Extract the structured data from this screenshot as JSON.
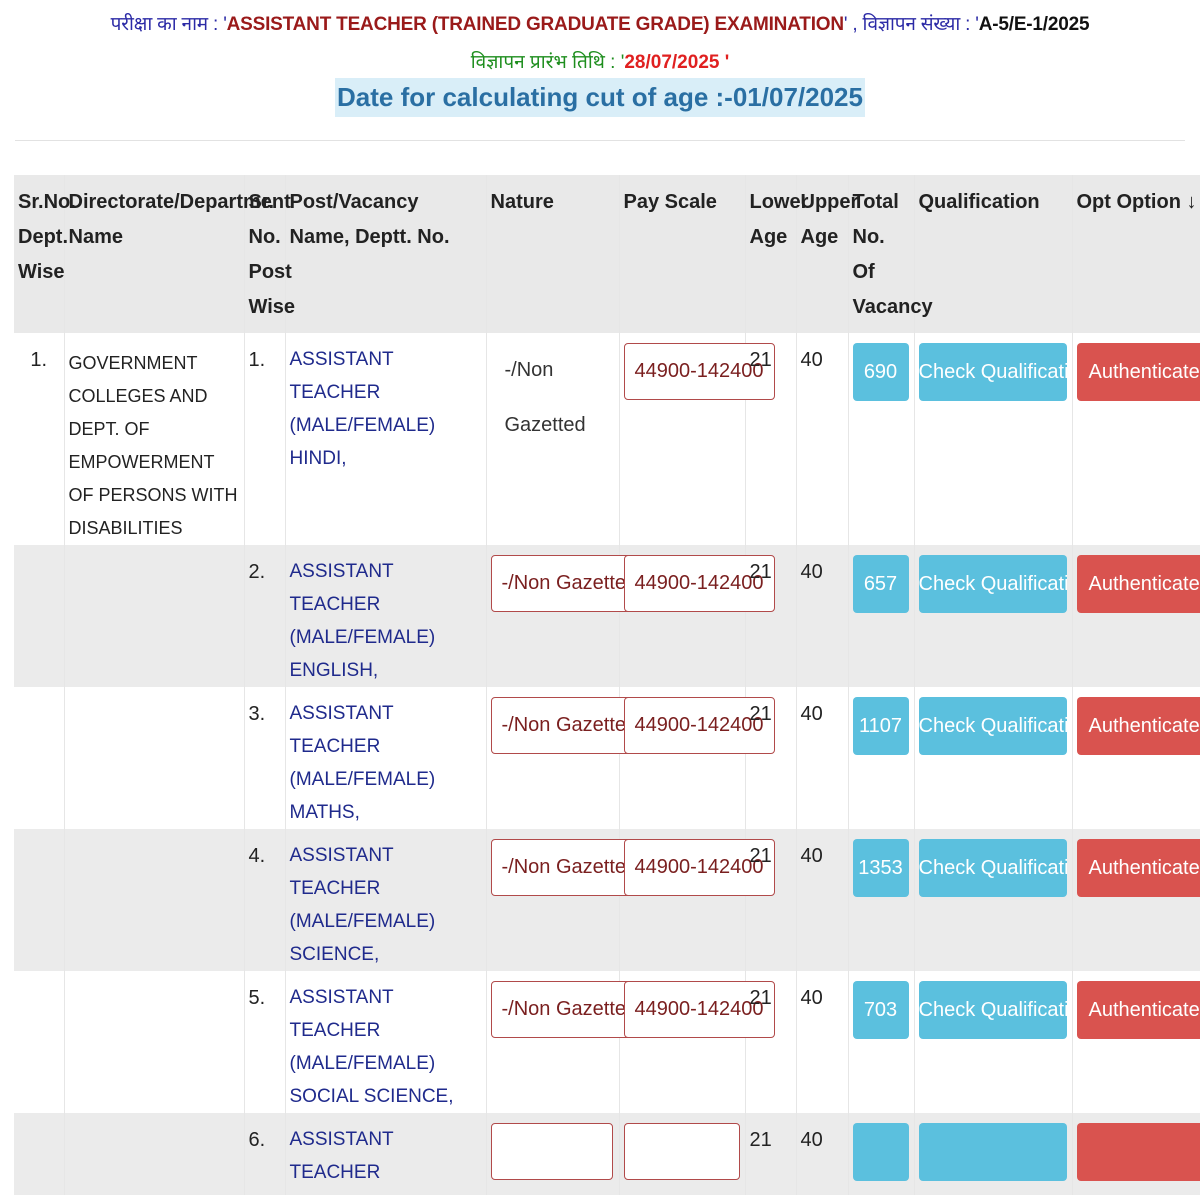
{
  "header": {
    "exam_label": "परीक्षा का नाम : '",
    "exam_name": "ASSISTANT TEACHER (TRAINED GRADUATE GRADE) EXAMINATION",
    "exam_sep": "' , विज्ञापन संख्या : '",
    "advt_no": "A-5/E-1/2025",
    "advt_date_label": "विज्ञापन प्रारंभ तिथि : '",
    "advt_date": "28/07/2025",
    "advt_date_close": "'",
    "cutoff_text": "Date for calculating cut of age :-01/07/2025"
  },
  "table": {
    "columns": [
      "Sr.No. Dept. Wise",
      "Directorate/Department Name",
      "Sr. No. Post Wise",
      "Post/Vacancy Name, Deptt. No.",
      "Nature",
      "Pay Scale",
      "Lower Age",
      "Upper Age",
      "Total No. Of Vacancy",
      "Qualification",
      "Opt Option ↓"
    ],
    "rows": [
      {
        "dept_sr": "1.",
        "dept": "GOVERNMENT COLLEGES AND DEPT. OF EMPOWERMENT OF PERSONS WITH DISABILITIES",
        "post_sr": "1.",
        "post": "ASSISTANT TEACHER (MALE/FEMALE) HINDI,",
        "nature": "-/Non Gazetted",
        "pay": "44900-142400",
        "lower": "21",
        "upper": "40",
        "vacancy": "690",
        "qual_btn": "Check Qualification",
        "opt_btn": "Authenticate w"
      },
      {
        "dept_sr": "",
        "dept": "",
        "post_sr": "2.",
        "post": "ASSISTANT TEACHER (MALE/FEMALE) ENGLISH,",
        "nature": "-/Non Gazetted",
        "pay": "44900-142400",
        "lower": "21",
        "upper": "40",
        "vacancy": "657",
        "qual_btn": "Check Qualification",
        "opt_btn": "Authenticate w"
      },
      {
        "dept_sr": "",
        "dept": "",
        "post_sr": "3.",
        "post": "ASSISTANT TEACHER (MALE/FEMALE) MATHS,",
        "nature": "-/Non Gazetted",
        "pay": "44900-142400",
        "lower": "21",
        "upper": "40",
        "vacancy": "1107",
        "qual_btn": "Check Qualification",
        "opt_btn": "Authenticate w"
      },
      {
        "dept_sr": "",
        "dept": "",
        "post_sr": "4.",
        "post": "ASSISTANT TEACHER (MALE/FEMALE) SCIENCE,",
        "nature": "-/Non Gazetted",
        "pay": "44900-142400",
        "lower": "21",
        "upper": "40",
        "vacancy": "1353",
        "qual_btn": "Check Qualification",
        "opt_btn": "Authenticate w"
      },
      {
        "dept_sr": "",
        "dept": "",
        "post_sr": "5.",
        "post": "ASSISTANT TEACHER (MALE/FEMALE) SOCIAL SCIENCE,",
        "nature": "-/Non Gazetted",
        "pay": "44900-142400",
        "lower": "21",
        "upper": "40",
        "vacancy": "703",
        "qual_btn": "Check Qualification",
        "opt_btn": "Authenticate w"
      },
      {
        "dept_sr": "",
        "dept": "",
        "post_sr": "6.",
        "post": "ASSISTANT TEACHER",
        "nature": "",
        "pay": "",
        "lower": "21",
        "upper": "40",
        "vacancy": "",
        "qual_btn": "",
        "opt_btn": ""
      }
    ]
  }
}
